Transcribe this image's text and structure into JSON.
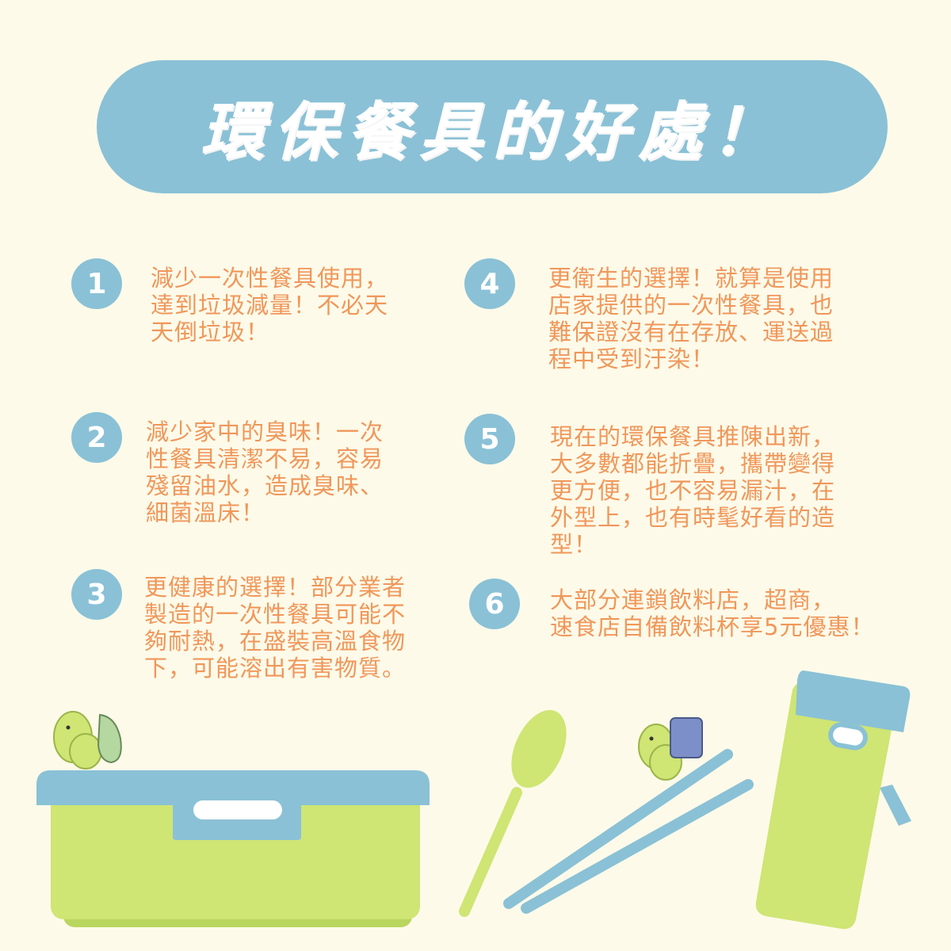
{
  "title": "環保餐具的好處！",
  "tips": [
    {
      "number": "1",
      "text": "減少一次性餐具使用，\n達到垃圾減量！不必天\n天倒垃圾！"
    },
    {
      "number": "2",
      "text": "減少家中的臭味！一次\n性餐具清潔不易，容易\n殘留油水，造成臭味、\n細菌溫床！"
    },
    {
      "number": "3",
      "text": "更健康的選擇！部分業者\n製造的一次性餐具可能不\n夠耐熱，在盛裝高溫食物\n下，可能溶出有害物質。"
    },
    {
      "number": "4",
      "text": "更衛生的選擇！就算是使用\n店家提供的一次性餐具，也\n難保證沒有在存放、運送過\n程中受到汙染！"
    },
    {
      "number": "5",
      "text": "現在的環保餐具推陳出新，\n大多數都能折疊，攜帶變得\n更方便，也不容易漏汁，在\n外型上，也有時髦好看的造\n型！"
    },
    {
      "number": "6",
      "text": "大部分連鎖飲料店，超商，\n速食店自備飲料杯享5元優惠！"
    }
  ],
  "colors": {
    "background": "#fdfae9",
    "accent_blue": "#8ac1d6",
    "text_orange": "#f0975a",
    "green": "#cfe574"
  }
}
